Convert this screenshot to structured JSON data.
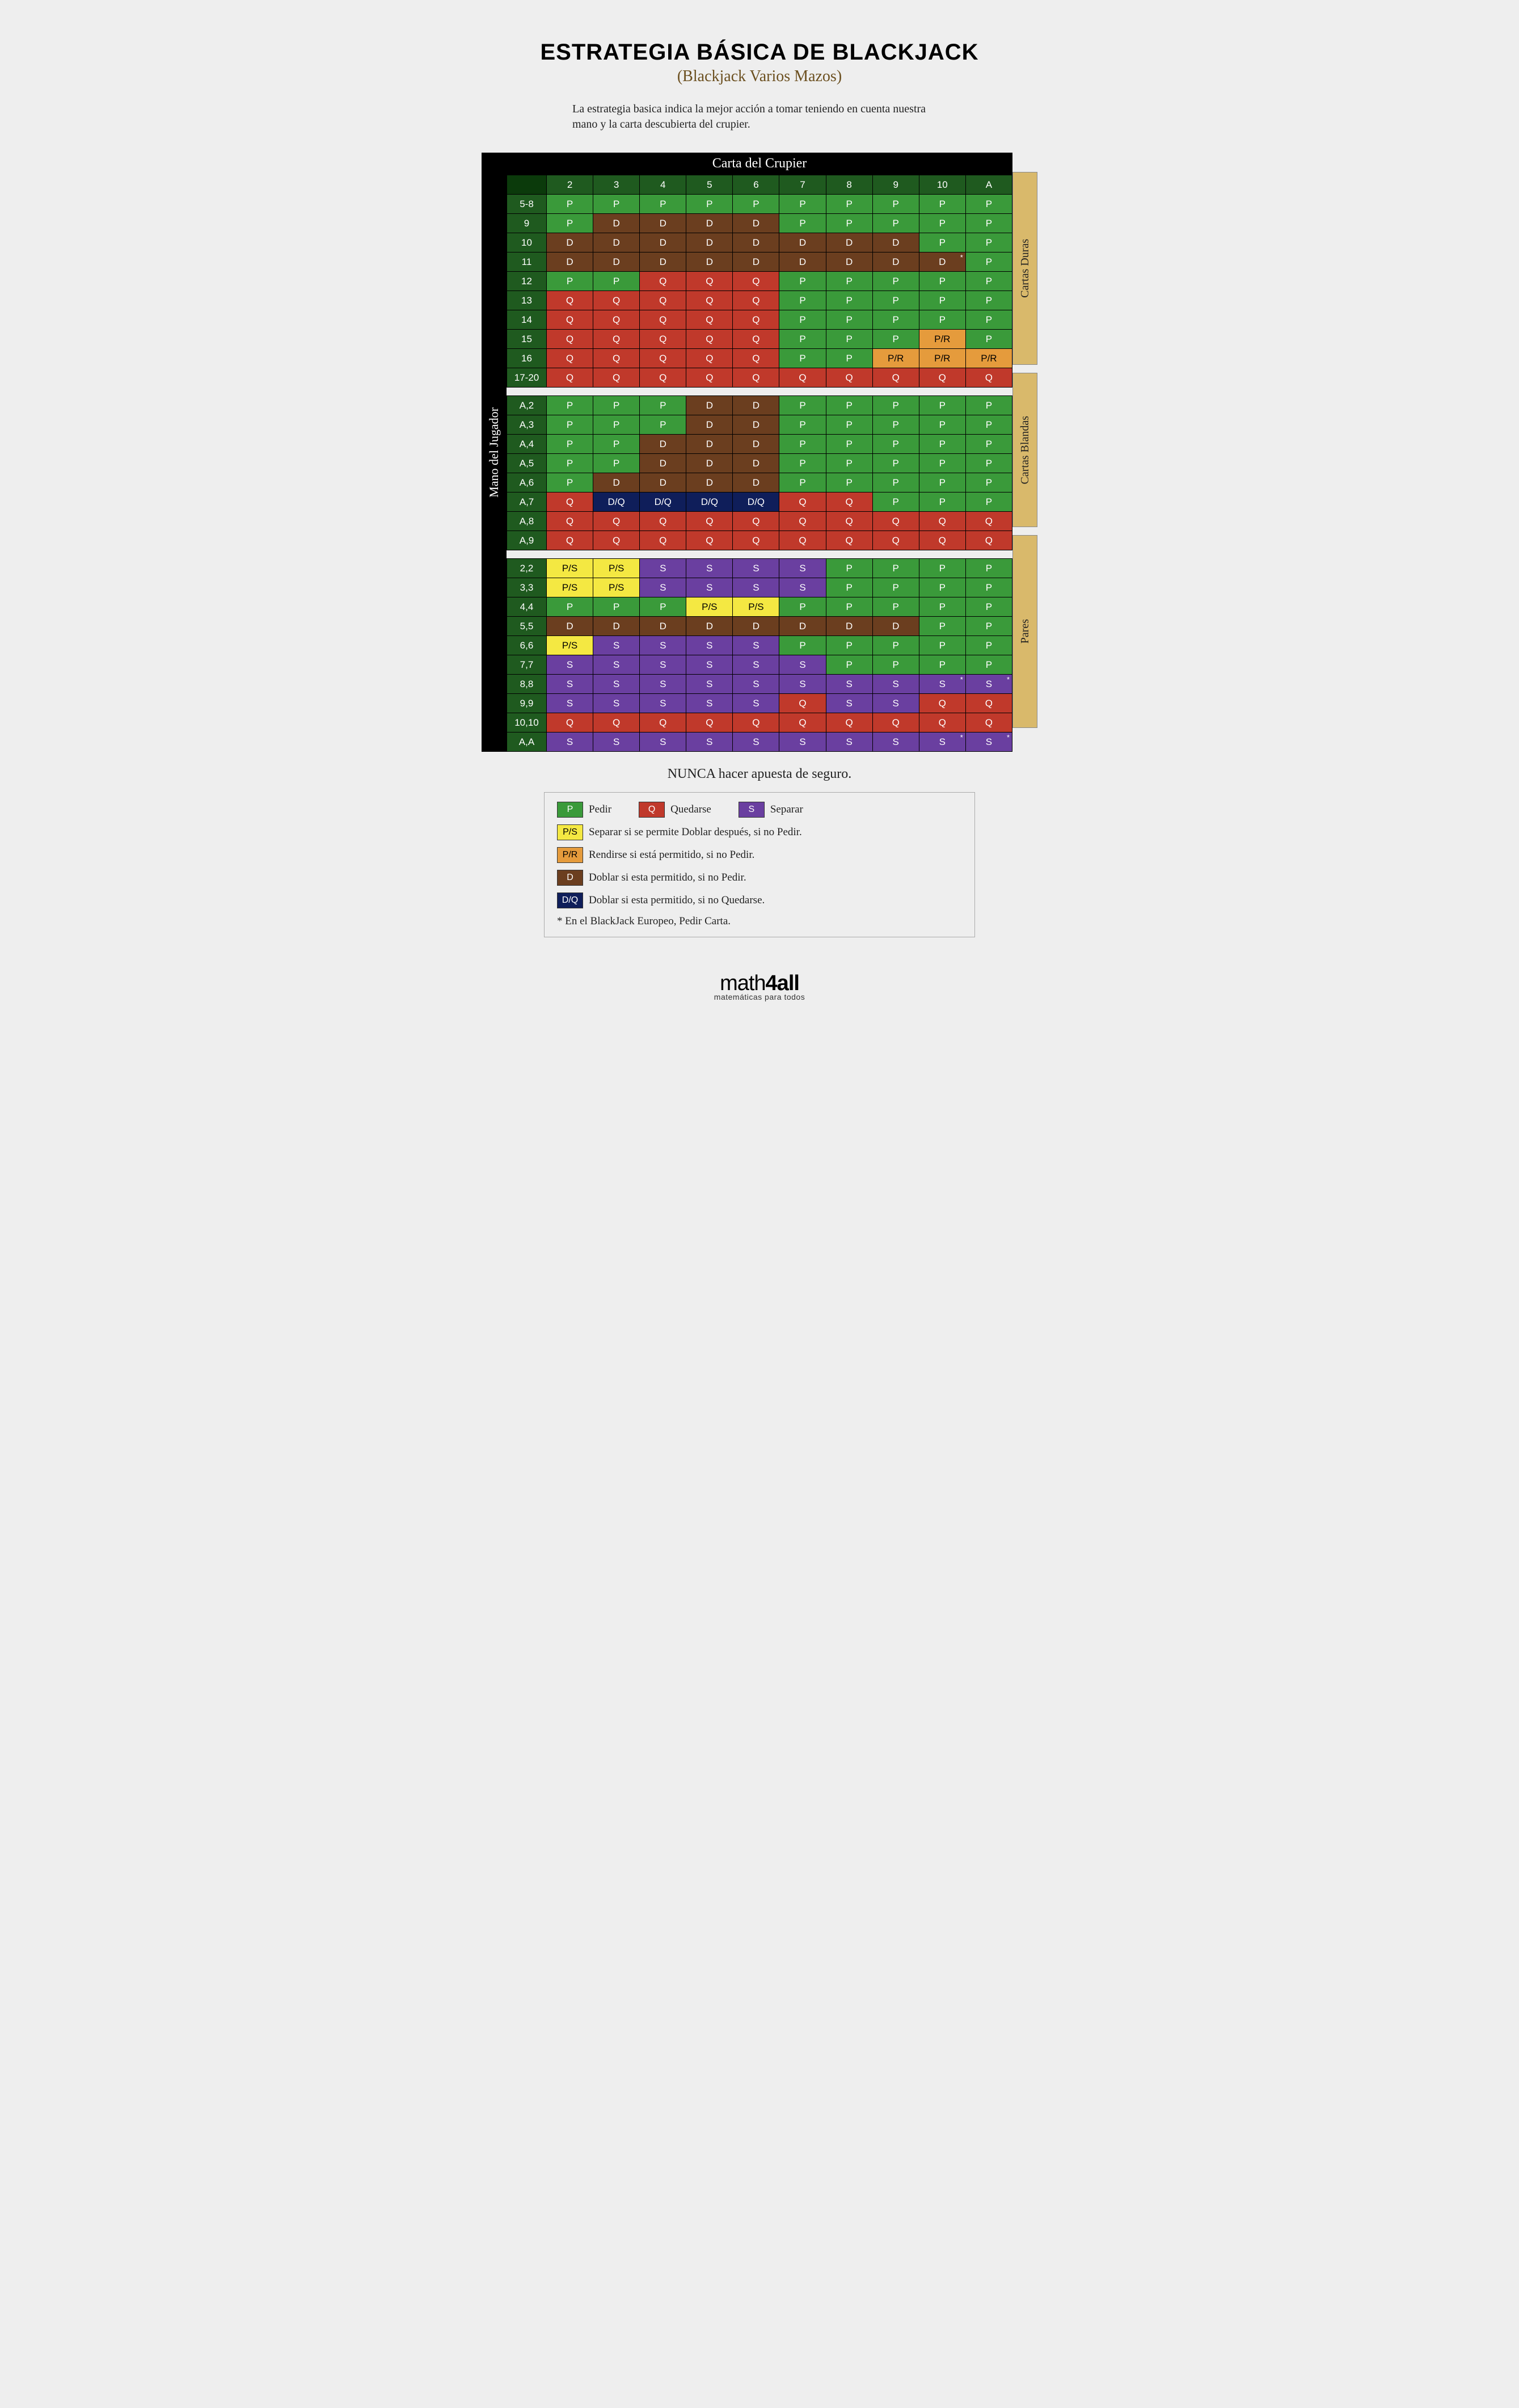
{
  "title": "ESTRATEGIA BÁSICA DE BLACKJACK",
  "subtitle": "(Blackjack Varios Mazos)",
  "subtitle_color": "#6b4f1f",
  "intro": "La estrategia basica indica la mejor acción a tomar teniendo en cuenta nuestra mano y la carta descubierta del crupier.",
  "dealer_header": "Carta del Crupier",
  "player_header": "Mano del Jugador",
  "dealer_cards": [
    "2",
    "3",
    "4",
    "5",
    "6",
    "7",
    "8",
    "9",
    "10",
    "A"
  ],
  "never_insurance": "NUNCA hacer apuesta de seguro.",
  "logo": {
    "pre": "math",
    "bold": "4all",
    "tag": "matemáticas para todos"
  },
  "colors": {
    "background": "#eeeeee",
    "black": "#000000",
    "corner_dark_green": "#0b3a0b",
    "dealer_head_green": "#1f5a1f",
    "row_head_green": "#1f5a1f",
    "right_label_bg": "#d9b96b"
  },
  "actions": {
    "P": {
      "bg": "#3a9a3a",
      "fg": "#ffffff",
      "text": "P"
    },
    "Q": {
      "bg": "#c0392b",
      "fg": "#ffffff",
      "text": "Q"
    },
    "S": {
      "bg": "#6a3fa0",
      "fg": "#ffffff",
      "text": "S"
    },
    "D": {
      "bg": "#6b3e1f",
      "fg": "#ffffff",
      "text": "D"
    },
    "DQ": {
      "bg": "#0f1e5a",
      "fg": "#ffffff",
      "text": "D/Q"
    },
    "PS": {
      "bg": "#f4e842",
      "fg": "#000000",
      "text": "P/S"
    },
    "PR": {
      "bg": "#e59b3c",
      "fg": "#000000",
      "text": "P/R"
    }
  },
  "sections": [
    {
      "id": "hard",
      "label": "Cartas Duras",
      "rows": [
        {
          "h": "5-8",
          "cells": [
            "P",
            "P",
            "P",
            "P",
            "P",
            "P",
            "P",
            "P",
            "P",
            "P"
          ]
        },
        {
          "h": "9",
          "cells": [
            "P",
            "D",
            "D",
            "D",
            "D",
            "P",
            "P",
            "P",
            "P",
            "P"
          ]
        },
        {
          "h": "10",
          "cells": [
            "D",
            "D",
            "D",
            "D",
            "D",
            "D",
            "D",
            "D",
            "P",
            "P"
          ]
        },
        {
          "h": "11",
          "cells": [
            "D",
            "D",
            "D",
            "D",
            "D",
            "D",
            "D",
            "D",
            "D",
            "P"
          ],
          "asterisk": [
            8
          ]
        },
        {
          "h": "12",
          "cells": [
            "P",
            "P",
            "Q",
            "Q",
            "Q",
            "P",
            "P",
            "P",
            "P",
            "P"
          ]
        },
        {
          "h": "13",
          "cells": [
            "Q",
            "Q",
            "Q",
            "Q",
            "Q",
            "P",
            "P",
            "P",
            "P",
            "P"
          ]
        },
        {
          "h": "14",
          "cells": [
            "Q",
            "Q",
            "Q",
            "Q",
            "Q",
            "P",
            "P",
            "P",
            "P",
            "P"
          ]
        },
        {
          "h": "15",
          "cells": [
            "Q",
            "Q",
            "Q",
            "Q",
            "Q",
            "P",
            "P",
            "P",
            "PR",
            "P"
          ]
        },
        {
          "h": "16",
          "cells": [
            "Q",
            "Q",
            "Q",
            "Q",
            "Q",
            "P",
            "P",
            "PR",
            "PR",
            "PR"
          ]
        },
        {
          "h": "17-20",
          "cells": [
            "Q",
            "Q",
            "Q",
            "Q",
            "Q",
            "Q",
            "Q",
            "Q",
            "Q",
            "Q"
          ]
        }
      ]
    },
    {
      "id": "soft",
      "label": "Cartas Blandas",
      "rows": [
        {
          "h": "A,2",
          "cells": [
            "P",
            "P",
            "P",
            "D",
            "D",
            "P",
            "P",
            "P",
            "P",
            "P"
          ]
        },
        {
          "h": "A,3",
          "cells": [
            "P",
            "P",
            "P",
            "D",
            "D",
            "P",
            "P",
            "P",
            "P",
            "P"
          ]
        },
        {
          "h": "A,4",
          "cells": [
            "P",
            "P",
            "D",
            "D",
            "D",
            "P",
            "P",
            "P",
            "P",
            "P"
          ]
        },
        {
          "h": "A,5",
          "cells": [
            "P",
            "P",
            "D",
            "D",
            "D",
            "P",
            "P",
            "P",
            "P",
            "P"
          ]
        },
        {
          "h": "A,6",
          "cells": [
            "P",
            "D",
            "D",
            "D",
            "D",
            "P",
            "P",
            "P",
            "P",
            "P"
          ]
        },
        {
          "h": "A,7",
          "cells": [
            "Q",
            "DQ",
            "DQ",
            "DQ",
            "DQ",
            "Q",
            "Q",
            "P",
            "P",
            "P"
          ]
        },
        {
          "h": "A,8",
          "cells": [
            "Q",
            "Q",
            "Q",
            "Q",
            "Q",
            "Q",
            "Q",
            "Q",
            "Q",
            "Q"
          ]
        },
        {
          "h": "A,9",
          "cells": [
            "Q",
            "Q",
            "Q",
            "Q",
            "Q",
            "Q",
            "Q",
            "Q",
            "Q",
            "Q"
          ]
        }
      ]
    },
    {
      "id": "pairs",
      "label": "Pares",
      "rows": [
        {
          "h": "2,2",
          "cells": [
            "PS",
            "PS",
            "S",
            "S",
            "S",
            "S",
            "P",
            "P",
            "P",
            "P"
          ]
        },
        {
          "h": "3,3",
          "cells": [
            "PS",
            "PS",
            "S",
            "S",
            "S",
            "S",
            "P",
            "P",
            "P",
            "P"
          ]
        },
        {
          "h": "4,4",
          "cells": [
            "P",
            "P",
            "P",
            "PS",
            "PS",
            "P",
            "P",
            "P",
            "P",
            "P"
          ]
        },
        {
          "h": "5,5",
          "cells": [
            "D",
            "D",
            "D",
            "D",
            "D",
            "D",
            "D",
            "D",
            "P",
            "P"
          ]
        },
        {
          "h": "6,6",
          "cells": [
            "PS",
            "S",
            "S",
            "S",
            "S",
            "P",
            "P",
            "P",
            "P",
            "P"
          ]
        },
        {
          "h": "7,7",
          "cells": [
            "S",
            "S",
            "S",
            "S",
            "S",
            "S",
            "P",
            "P",
            "P",
            "P"
          ]
        },
        {
          "h": "8,8",
          "cells": [
            "S",
            "S",
            "S",
            "S",
            "S",
            "S",
            "S",
            "S",
            "S",
            "S"
          ],
          "asterisk": [
            8,
            9
          ]
        },
        {
          "h": "9,9",
          "cells": [
            "S",
            "S",
            "S",
            "S",
            "S",
            "Q",
            "S",
            "S",
            "Q",
            "Q"
          ]
        },
        {
          "h": "10,10",
          "cells": [
            "Q",
            "Q",
            "Q",
            "Q",
            "Q",
            "Q",
            "Q",
            "Q",
            "Q",
            "Q"
          ]
        },
        {
          "h": "A,A",
          "cells": [
            "S",
            "S",
            "S",
            "S",
            "S",
            "S",
            "S",
            "S",
            "S",
            "S"
          ],
          "asterisk": [
            8,
            9
          ]
        }
      ]
    }
  ],
  "legend": {
    "row1": [
      {
        "k": "P",
        "label": "Pedir"
      },
      {
        "k": "Q",
        "label": "Quedarse"
      },
      {
        "k": "S",
        "label": "Separar"
      }
    ],
    "row2": {
      "k": "PS",
      "label": "Separar si se permite Doblar después, si no Pedir."
    },
    "row3": {
      "k": "PR",
      "label": "Rendirse si está permitido, si no Pedir."
    },
    "row4": {
      "k": "D",
      "label": "Doblar si esta permitido, si no Pedir."
    },
    "row5": {
      "k": "DQ",
      "label": "Doblar si esta permitido, si no Quedarse."
    },
    "note": "* En el BlackJack Europeo, Pedir Carta."
  }
}
